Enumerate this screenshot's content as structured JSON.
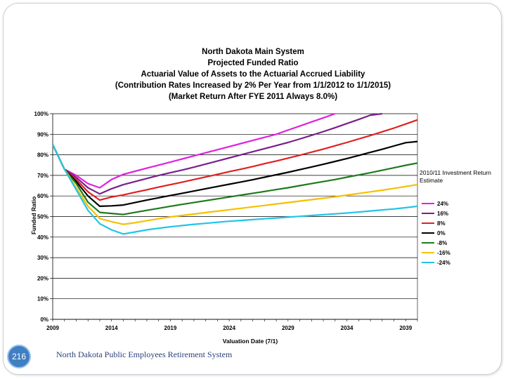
{
  "slide": {
    "page_number": "216",
    "footer": "North Dakota Public Employees Retirement System"
  },
  "chart_data": {
    "type": "line",
    "title_lines": [
      "North Dakota Main System",
      "Projected Funded Ratio",
      "Actuarial Value of Assets to the Actuarial Accrued Liability",
      "(Contribution Rates Increased by 2% Per Year from 1/1/2012 to 1/1/2015)",
      "(Market Return After FYE 2011 Always 8.0%)"
    ],
    "xlabel": "Valuation Date (7/1)",
    "ylabel": "Funded Ratio",
    "xlim": [
      2009,
      2040
    ],
    "ylim": [
      0,
      100
    ],
    "x_ticks": [
      2009,
      2014,
      2019,
      2024,
      2029,
      2034,
      2039
    ],
    "y_ticks": [
      "0%",
      "10%",
      "20%",
      "30%",
      "40%",
      "50%",
      "60%",
      "70%",
      "80%",
      "90%",
      "100%"
    ],
    "grid": "horizontal",
    "legend_title": "2010/11 Investment Return Estimate",
    "legend_position": "right",
    "x": [
      2009,
      2010,
      2011,
      2012,
      2013,
      2014,
      2015,
      2016,
      2017,
      2018,
      2019,
      2020,
      2021,
      2022,
      2023,
      2024,
      2025,
      2026,
      2027,
      2028,
      2029,
      2030,
      2031,
      2032,
      2033,
      2034,
      2035,
      2036,
      2037,
      2038,
      2039,
      2040
    ],
    "series": [
      {
        "name": "24%",
        "color": "#e020e0",
        "values": [
          85,
          73,
          70,
          66,
          64,
          68,
          70.5,
          72,
          73.5,
          75,
          76.5,
          78,
          79.5,
          81,
          82.5,
          84,
          85.5,
          87,
          88.5,
          90,
          92,
          94,
          96,
          98,
          100,
          null,
          null,
          null,
          null,
          null,
          null,
          null
        ]
      },
      {
        "name": "16%",
        "color": "#7a1f8a",
        "values": [
          85,
          73,
          69,
          64,
          61,
          63.5,
          65.5,
          67,
          68.5,
          70,
          71.3,
          72.6,
          74,
          75.5,
          77,
          78.5,
          80,
          81.5,
          83,
          84.5,
          86,
          87.7,
          89.5,
          91.3,
          93.2,
          95.2,
          97.2,
          99.3,
          100,
          null,
          null,
          null
        ]
      },
      {
        "name": "8%",
        "color": "#e02020",
        "values": [
          85,
          73,
          68,
          62,
          58,
          59.5,
          60.5,
          61.8,
          63,
          64.3,
          65.5,
          66.7,
          68,
          69.2,
          70.5,
          71.8,
          73,
          74.3,
          75.7,
          77,
          78.4,
          79.8,
          81.3,
          82.8,
          84.4,
          86,
          87.7,
          89.4,
          91.2,
          93,
          95,
          97
        ]
      },
      {
        "name": "0%",
        "color": "#000000",
        "values": [
          85,
          73,
          67,
          60,
          55,
          55.2,
          55.6,
          56.8,
          58,
          59.1,
          60.2,
          61.3,
          62.4,
          63.5,
          64.6,
          65.7,
          66.8,
          67.9,
          69.1,
          70.3,
          71.5,
          72.8,
          74.1,
          75.4,
          76.8,
          78.2,
          79.7,
          81.2,
          82.7,
          84.3,
          85.9,
          86.5
        ]
      },
      {
        "name": "-8%",
        "color": "#1e7a1e",
        "values": [
          85,
          73,
          66,
          57,
          52,
          51.5,
          51,
          52,
          53,
          54,
          55,
          55.9,
          56.8,
          57.7,
          58.6,
          59.5,
          60.4,
          61.3,
          62.2,
          63.1,
          64,
          65,
          66,
          67,
          68,
          69.1,
          70.2,
          71.3,
          72.5,
          73.7,
          74.9,
          76
        ]
      },
      {
        "name": "-16%",
        "color": "#f5c000",
        "values": [
          85,
          73,
          64,
          55,
          49,
          47.5,
          46.2,
          47,
          48,
          48.9,
          49.8,
          50.5,
          51.2,
          51.9,
          52.6,
          53.3,
          54,
          54.7,
          55.4,
          56.1,
          56.8,
          57.5,
          58.2,
          58.9,
          59.6,
          60.4,
          61.2,
          62,
          62.8,
          63.7,
          64.6,
          65.5
        ]
      },
      {
        "name": "-24%",
        "color": "#22c4e8",
        "values": [
          85,
          73,
          63,
          53,
          46.5,
          43.5,
          41.5,
          42.5,
          43.5,
          44.3,
          45,
          45.6,
          46.2,
          46.7,
          47.2,
          47.7,
          48.1,
          48.5,
          48.9,
          49.3,
          49.7,
          50.1,
          50.5,
          50.9,
          51.3,
          51.7,
          52.2,
          52.7,
          53.2,
          53.7,
          54.3,
          55
        ]
      }
    ]
  }
}
